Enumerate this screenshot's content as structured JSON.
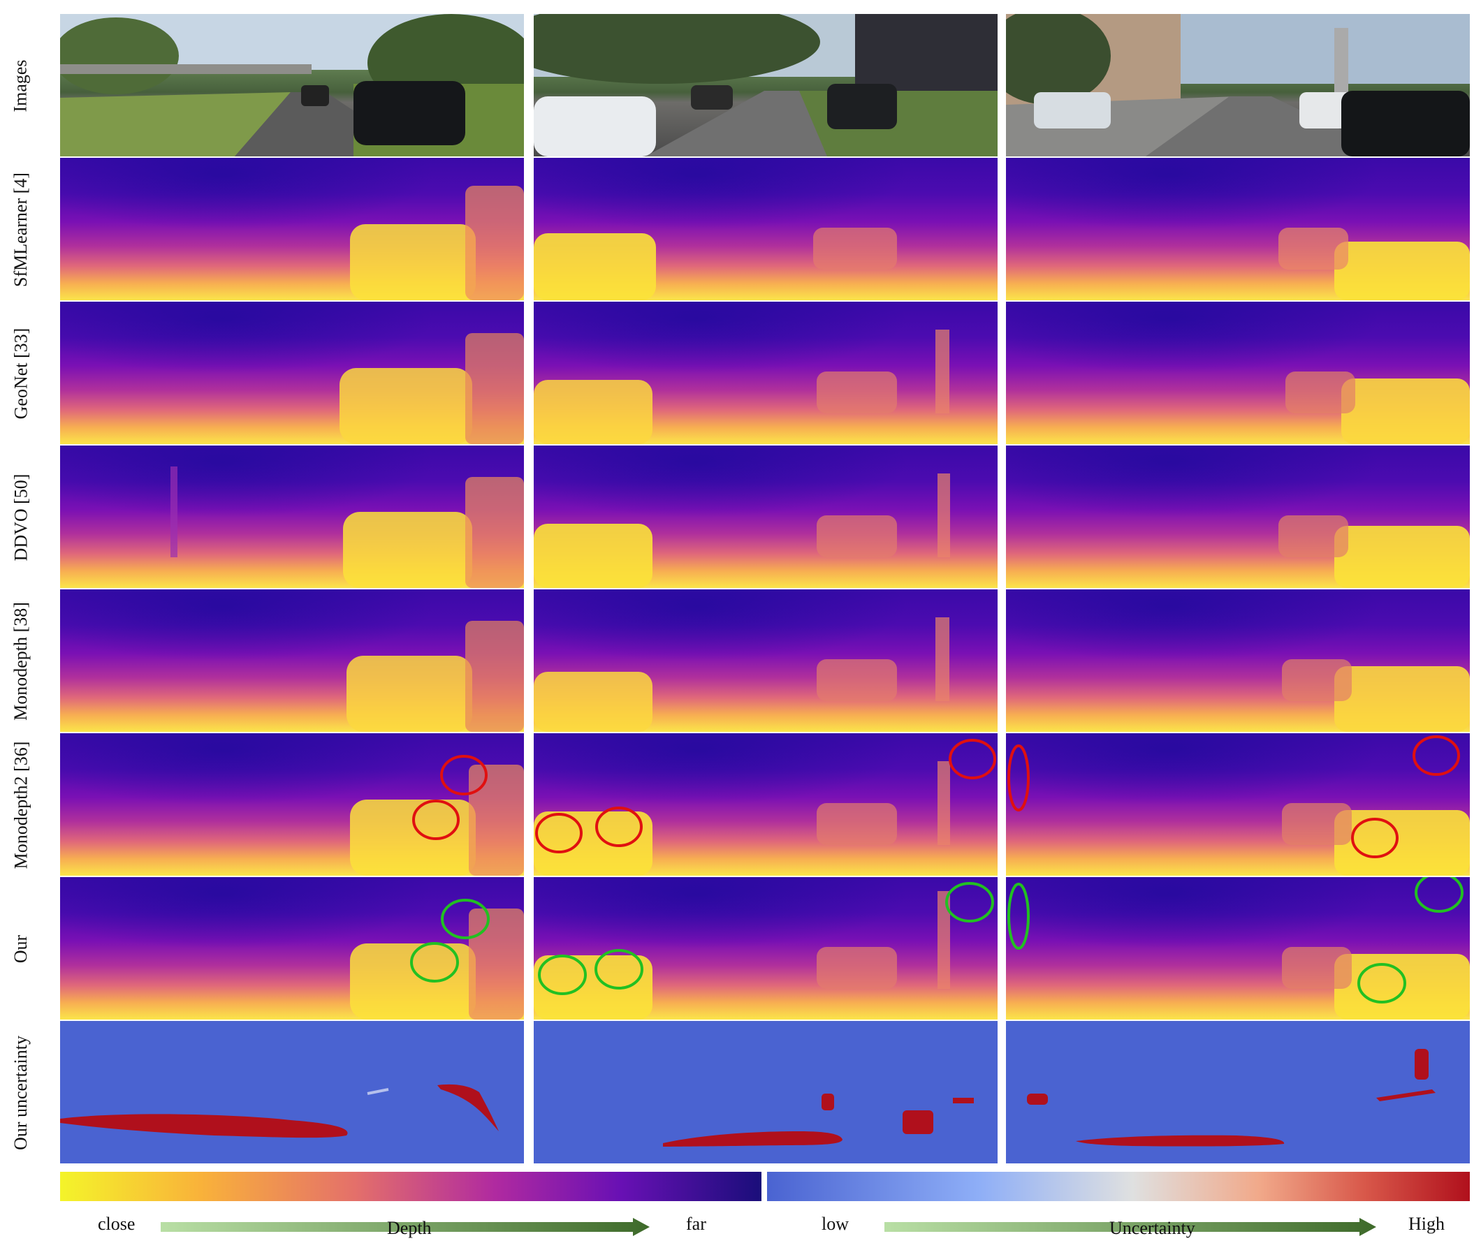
{
  "rows": [
    {
      "label": "Images"
    },
    {
      "label": "SfMLearner [4]"
    },
    {
      "label": "GeoNet [33]"
    },
    {
      "label": "DDVO [50]"
    },
    {
      "label": "Monodepth [38]"
    },
    {
      "label": "Monodepth2 [36]"
    },
    {
      "label": "Our"
    },
    {
      "label": "Our uncertainty"
    }
  ],
  "colorbar": {
    "depth": {
      "left": "close",
      "middle": "Depth",
      "right": "far"
    },
    "uncertainty": {
      "left": "low",
      "middle": "Uncertainty",
      "right": "High"
    }
  },
  "colors": {
    "depth_close": "#f4f42a",
    "depth_far": "#1a0e7a",
    "unc_low": "#4a63d1",
    "unc_high": "#b0101c",
    "highlight_red": "#e01010",
    "highlight_green": "#22c022",
    "arrow_start": "#b9dfa5",
    "arrow_end": "#3e6a2a"
  }
}
